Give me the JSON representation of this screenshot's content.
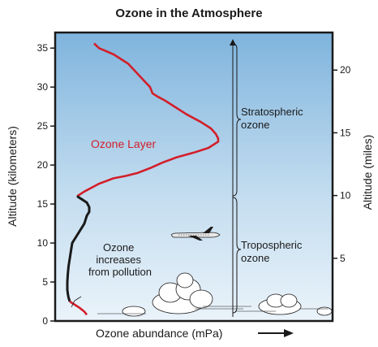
{
  "chart_data": {
    "type": "line",
    "title": "Ozone in the Atmosphere",
    "xlabel": "Ozone abundance (mPa)",
    "ylabel": "Altitude (kilometers)",
    "ylabel_right": "Altitude (miles)",
    "ylim": [
      0,
      37
    ],
    "y_ticks_km": [
      "0",
      "5",
      "10",
      "15",
      "20",
      "25",
      "30",
      "35"
    ],
    "y_ticks_miles": [
      "5",
      "10",
      "15",
      "20"
    ],
    "grid": false,
    "legend": "none",
    "colors": {
      "background_top": "#7fb4dd",
      "background_bottom": "#eaf3fa",
      "stratosphere_line": "#d21f2a",
      "troposphere_line": "#1a1a1a",
      "frame": "#1a1a1a"
    },
    "series": [
      {
        "region": "stratosphere",
        "x": [
          1.2,
          1.4,
          1.7,
          2.0,
          2.3,
          2.6,
          2.9,
          3.2,
          3.5,
          3.6,
          3.8,
          4.1,
          4.5,
          5.0,
          5.6,
          6.0,
          6.2,
          6.3,
          6.3,
          5.9,
          5.3,
          4.6,
          4.0,
          3.5,
          3.0,
          2.5,
          2.0,
          1.4,
          0.8,
          0.5
        ],
        "y": [
          35.6,
          35.0,
          34.6,
          34.2,
          33.6,
          33.0,
          32.0,
          31.0,
          30.0,
          29.2,
          28.8,
          28.3,
          27.5,
          26.5,
          25.5,
          24.7,
          24.0,
          23.4,
          23.0,
          22.2,
          21.6,
          21.0,
          20.3,
          19.6,
          19.0,
          18.6,
          18.3,
          17.6,
          16.6,
          16.0
        ]
      },
      {
        "region": "troposphere",
        "x": [
          0.5,
          0.7,
          0.9,
          1.0,
          1.0,
          0.9,
          0.85,
          0.8,
          0.7,
          0.5,
          0.3,
          0.25,
          0.2,
          0.15,
          0.12,
          0.1,
          0.1,
          0.12,
          0.15,
          0.2
        ],
        "y": [
          16.0,
          15.6,
          15.2,
          14.6,
          14.0,
          13.5,
          13.0,
          12.5,
          12.0,
          11.0,
          10.0,
          9.0,
          8.0,
          7.0,
          6.0,
          5.0,
          4.0,
          3.5,
          3.0,
          2.5
        ]
      },
      {
        "region": "surface",
        "x": [
          0.2,
          0.4,
          0.6,
          0.8,
          0.9
        ],
        "y": [
          2.5,
          2.1,
          1.7,
          1.2,
          0.8
        ]
      }
    ],
    "annotations": {
      "ozone_layer": "Ozone Layer",
      "pollution": [
        "Ozone",
        "increases",
        "from pollution"
      ],
      "stratospheric": [
        "Stratospheric",
        "ozone"
      ],
      "tropospheric": [
        "Tropospheric",
        "ozone"
      ]
    }
  }
}
